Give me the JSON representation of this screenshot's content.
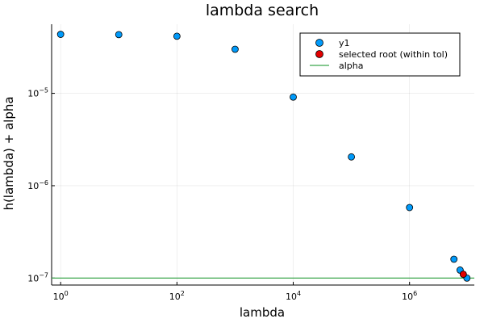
{
  "chart_data": {
    "type": "scatter",
    "title": "lambda search",
    "xlabel": "lambda",
    "ylabel": "h(lambda) + alpha",
    "xscale": "log",
    "yscale": "log",
    "xlim": [
      0.7,
      13000000
    ],
    "ylim": [
      8.4e-08,
      5.6e-05
    ],
    "grid": true,
    "legend_position": "top-right",
    "x_ticks": [
      {
        "value": 1,
        "base": "10",
        "exp": "0"
      },
      {
        "value": 100,
        "base": "10",
        "exp": "2"
      },
      {
        "value": 10000,
        "base": "10",
        "exp": "4"
      },
      {
        "value": 1000000,
        "base": "10",
        "exp": "6"
      }
    ],
    "y_ticks": [
      {
        "value": 1e-07,
        "base": "10",
        "exp": "−7"
      },
      {
        "value": 1e-06,
        "base": "10",
        "exp": "−6"
      },
      {
        "value": 1e-05,
        "base": "10",
        "exp": "−5"
      }
    ],
    "series": [
      {
        "name": "y1",
        "color": "#009AFA",
        "marker": "circle",
        "points": [
          {
            "x": 1,
            "y": 4.35e-05
          },
          {
            "x": 10,
            "y": 4.32e-05
          },
          {
            "x": 100,
            "y": 4.15e-05
          },
          {
            "x": 1000,
            "y": 3e-05
          },
          {
            "x": 10000,
            "y": 9.1e-06
          },
          {
            "x": 100000,
            "y": 2.05e-06
          },
          {
            "x": 1000000,
            "y": 5.8e-07
          },
          {
            "x": 5800000,
            "y": 1.6e-07
          },
          {
            "x": 7400000,
            "y": 1.22e-07
          },
          {
            "x": 9700000,
            "y": 1e-07
          }
        ]
      },
      {
        "name": "selected root (within tol)",
        "color": "#E20000",
        "marker": "circle",
        "points": [
          {
            "x": 8400000,
            "y": 1.1e-07
          }
        ]
      },
      {
        "name": "alpha",
        "color": "#3BA64C",
        "marker": "hline",
        "y": 1e-07
      }
    ]
  }
}
